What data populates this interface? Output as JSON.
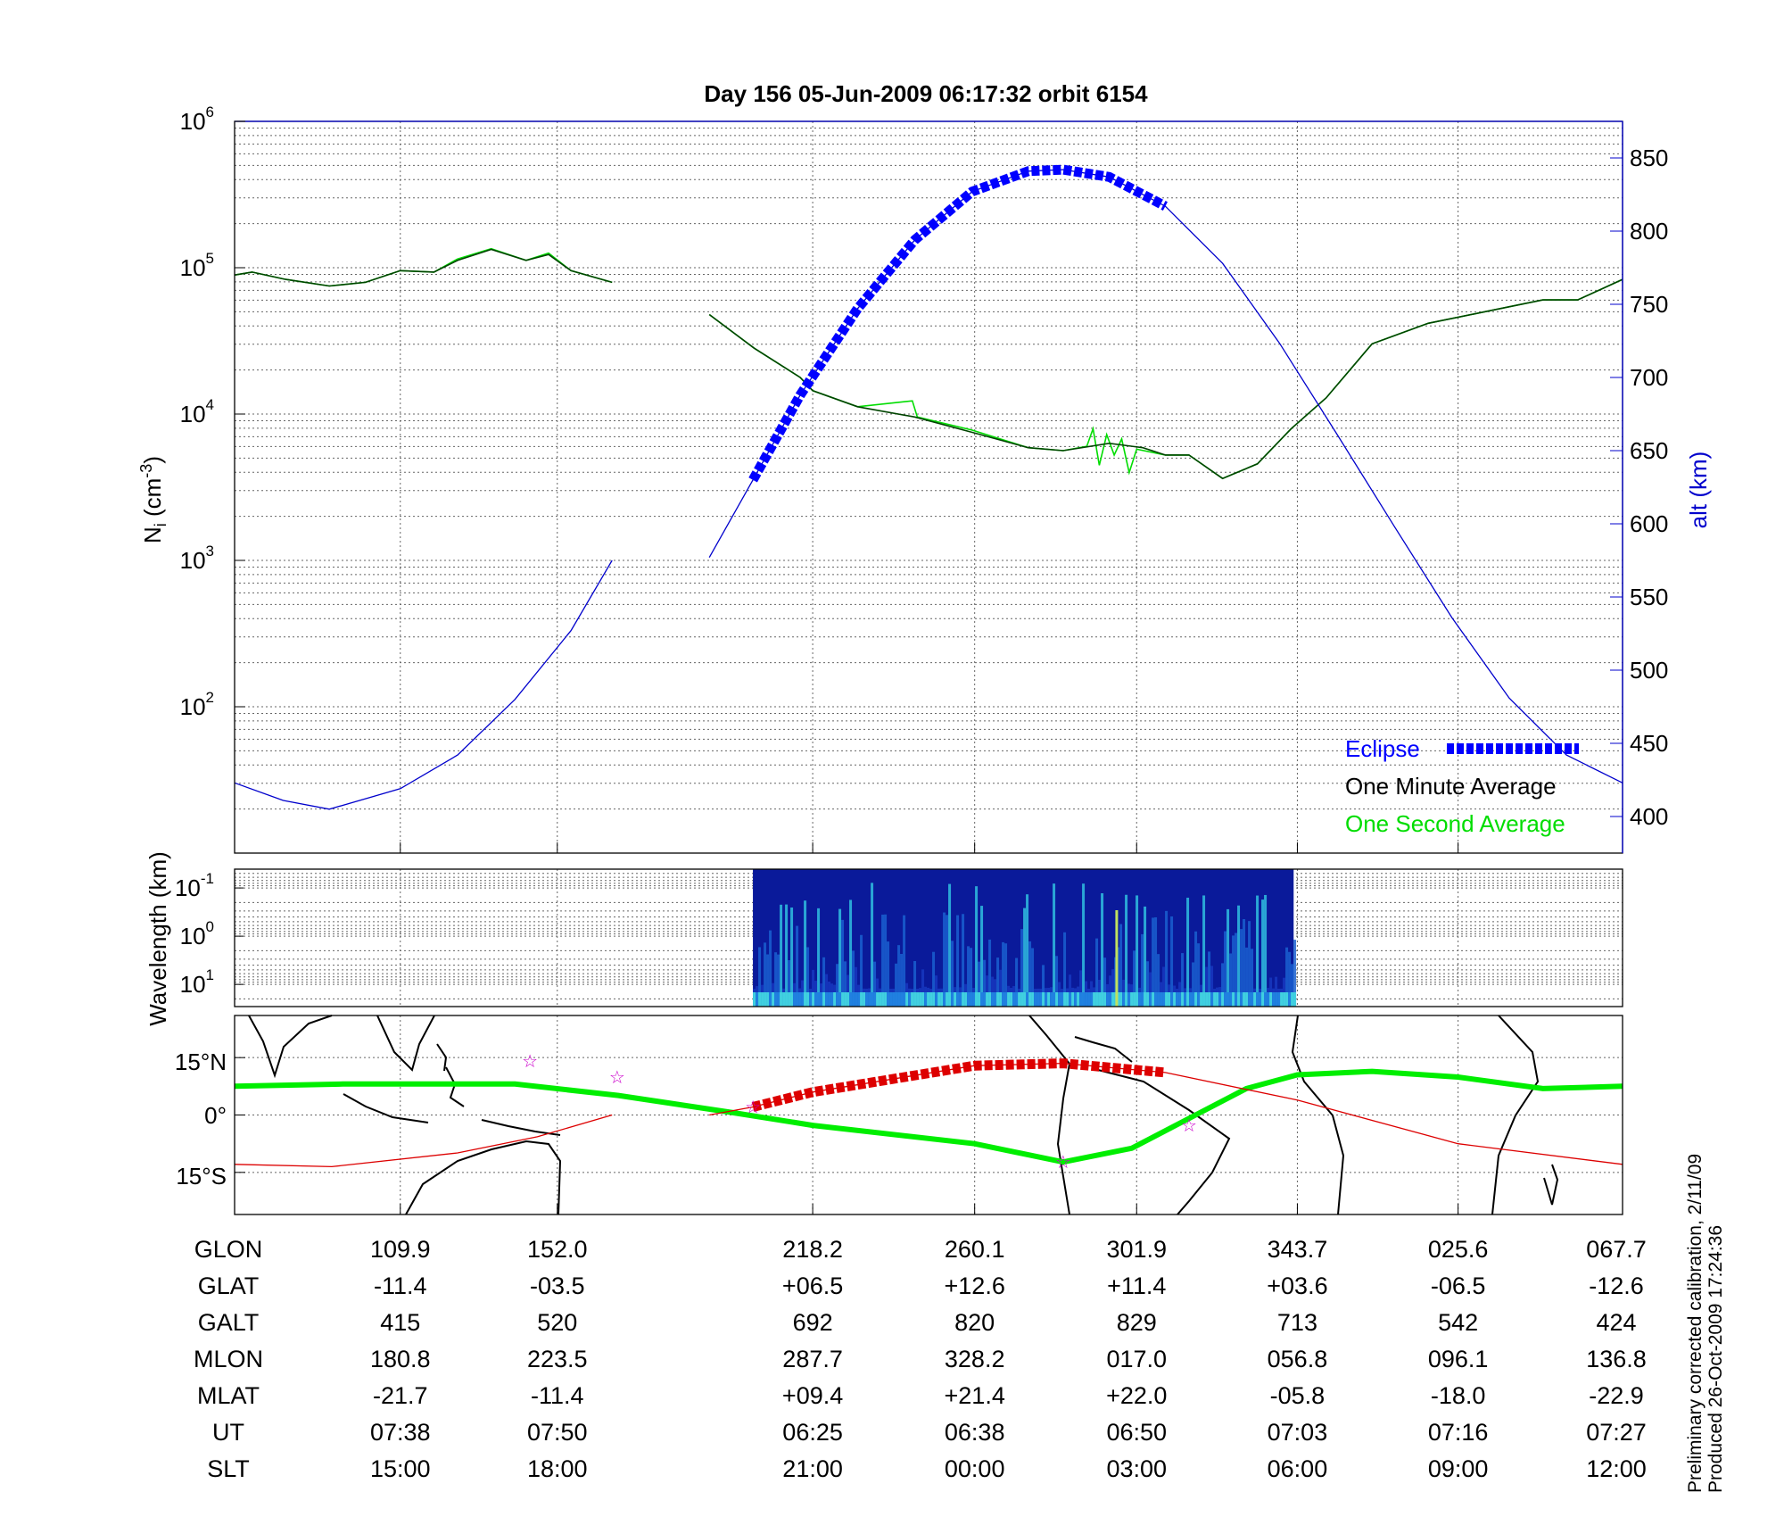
{
  "title": "Day 156  05-Jun-2009 06:17:32   orbit 6154",
  "top_panel": {
    "ylabel_left": "N",
    "ylabel_left_sub": "i",
    "ylabel_left_unit": " (cm",
    "ylabel_left_exp": "-3",
    "ylabel_left_close": ")",
    "ylabel_right": "alt (km)",
    "left_ticks": [
      {
        "base": "10",
        "exp": "6"
      },
      {
        "base": "10",
        "exp": "5"
      },
      {
        "base": "10",
        "exp": "4"
      },
      {
        "base": "10",
        "exp": "3"
      },
      {
        "base": "10",
        "exp": "2"
      }
    ],
    "right_ticks": [
      "850",
      "800",
      "750",
      "700",
      "650",
      "600",
      "550",
      "500",
      "450",
      "400"
    ],
    "legend": {
      "eclipse": "Eclipse",
      "minute": "One Minute Average",
      "second": "One Second Average"
    }
  },
  "spectrogram": {
    "ylabel": "Wavelength (km)",
    "ticks": [
      {
        "base": "10",
        "exp": "-1"
      },
      {
        "base": "10",
        "exp": "0"
      },
      {
        "base": "10",
        "exp": "1"
      }
    ]
  },
  "map": {
    "ticks": [
      "15°N",
      "0°",
      "15°S"
    ]
  },
  "table": {
    "rows": [
      {
        "label": "GLON",
        "values": [
          "109.9",
          "152.0",
          "218.2",
          "260.1",
          "301.9",
          "343.7",
          "025.6",
          "067.7"
        ]
      },
      {
        "label": "GLAT",
        "values": [
          "-11.4",
          "-03.5",
          "+06.5",
          "+12.6",
          "+11.4",
          "+03.6",
          "-06.5",
          "-12.6"
        ]
      },
      {
        "label": "GALT",
        "values": [
          "415",
          "520",
          "692",
          "820",
          "829",
          "713",
          "542",
          "424"
        ]
      },
      {
        "label": "MLON",
        "values": [
          "180.8",
          "223.5",
          "287.7",
          "328.2",
          "017.0",
          "056.8",
          "096.1",
          "136.8"
        ]
      },
      {
        "label": "MLAT",
        "values": [
          "-21.7",
          "-11.4",
          "+09.4",
          "+21.4",
          "+22.0",
          "-05.8",
          "-18.0",
          "-22.9"
        ]
      },
      {
        "label": "UT",
        "values": [
          "07:38",
          "07:50",
          "06:25",
          "06:38",
          "06:50",
          "07:03",
          "07:16",
          "07:27"
        ]
      },
      {
        "label": "SLT",
        "values": [
          "15:00",
          "18:00",
          "21:00",
          "00:00",
          "03:00",
          "06:00",
          "09:00",
          "12:00"
        ]
      }
    ]
  },
  "footer": {
    "line1": "Preliminary corrected calibration, 2/11/09",
    "line2": "Produced 26-Oct-2009 17:24:36"
  },
  "colors": {
    "alt": "#0000cc",
    "eclipse": "#0000ff",
    "minute": "#004400",
    "second": "#00dd00",
    "dip_equator": "#00ee00",
    "track": "#dd0000",
    "star": "#cc00cc"
  },
  "chart_data": {
    "type": "line",
    "title": "Day 156  05-Jun-2009 06:17:32   orbit 6154",
    "xlim_minutes": [
      -46.4,
      65.0
    ],
    "x_ticks_minutes": [
      -33.1,
      -20.5,
      0,
      13.0,
      26.0,
      38.9,
      51.8,
      65.0
    ],
    "ni_log10_range": [
      1,
      6
    ],
    "alt_range_km": [
      375,
      875
    ],
    "lat_range_deg": [
      -26,
      26
    ],
    "wavelength_log10_range": [
      -1.39,
      1.46
    ],
    "eclipse_minutes": [
      -4.8,
      28.3
    ],
    "spectrogram_minutes": [
      -4.8,
      38.6
    ],
    "altitude": [
      [
        -46.4,
        423
      ],
      [
        -42.5,
        411
      ],
      [
        -38.8,
        405
      ],
      [
        -33.1,
        419
      ],
      [
        -28.5,
        442
      ],
      [
        -23.9,
        480
      ],
      [
        -19.4,
        527
      ],
      [
        -16.1,
        575
      ],
      null,
      [
        -8.3,
        577
      ],
      [
        -4.8,
        630
      ],
      [
        -1.0,
        688
      ],
      [
        3.6,
        747
      ],
      [
        8.2,
        794
      ],
      [
        12.8,
        827
      ],
      [
        17.3,
        841
      ],
      [
        20.1,
        842
      ],
      [
        23.8,
        837
      ],
      [
        28.3,
        817
      ],
      [
        32.9,
        778
      ],
      [
        37.5,
        723
      ],
      [
        42.1,
        661
      ],
      [
        46.7,
        598
      ],
      [
        51.3,
        536
      ],
      [
        55.9,
        481
      ],
      [
        60.5,
        442
      ],
      [
        65.0,
        423
      ]
    ],
    "one_minute_log10_ni": [
      [
        -46.4,
        4.95
      ],
      [
        -45.0,
        4.97
      ],
      [
        -42.3,
        4.92
      ],
      [
        -38.8,
        4.875
      ],
      [
        -35.9,
        4.9
      ],
      [
        -33.1,
        4.98
      ],
      [
        -30.4,
        4.97
      ],
      [
        -28.5,
        5.05
      ],
      [
        -25.8,
        5.125
      ],
      [
        -23.0,
        5.05
      ],
      [
        -21.2,
        5.09
      ],
      [
        -19.4,
        4.98
      ],
      [
        -16.1,
        4.9
      ],
      null,
      [
        -8.3,
        4.68
      ],
      [
        -4.7,
        4.45
      ],
      [
        -1.0,
        4.25
      ],
      [
        0,
        4.16
      ],
      [
        3.6,
        4.05
      ],
      [
        8.2,
        3.98
      ],
      [
        12.8,
        3.875
      ],
      [
        17.3,
        3.77
      ],
      [
        20.1,
        3.75
      ],
      [
        23.8,
        3.8
      ],
      [
        26.5,
        3.77
      ],
      [
        28.3,
        3.72
      ],
      [
        30.2,
        3.72
      ],
      [
        32.9,
        3.56
      ],
      [
        35.7,
        3.66
      ],
      [
        38.4,
        3.9
      ],
      [
        41.2,
        4.11
      ],
      [
        44.9,
        4.48
      ],
      [
        49.4,
        4.62
      ],
      [
        54.0,
        4.7
      ],
      [
        58.6,
        4.78
      ],
      [
        61.4,
        4.78
      ],
      [
        65.0,
        4.92
      ]
    ],
    "one_second_log10_ni": [
      [
        -46.4,
        4.95
      ],
      [
        -45.0,
        4.97
      ],
      [
        -42.3,
        4.92
      ],
      [
        -38.8,
        4.875
      ],
      [
        -35.9,
        4.9
      ],
      [
        -33.1,
        4.98
      ],
      [
        -30.4,
        4.97
      ],
      [
        -28.5,
        5.06
      ],
      [
        -25.8,
        5.13
      ],
      [
        -23.0,
        5.05
      ],
      [
        -21.2,
        5.1
      ],
      [
        -19.4,
        4.98
      ],
      [
        -16.1,
        4.9
      ],
      null,
      [
        -8.3,
        4.68
      ],
      [
        -4.7,
        4.45
      ],
      [
        -1.0,
        4.25
      ],
      [
        0,
        4.16
      ],
      [
        3.6,
        4.05
      ],
      [
        8.0,
        4.09
      ],
      [
        8.4,
        3.98
      ],
      [
        12.8,
        3.89
      ],
      [
        17.3,
        3.77
      ],
      [
        20.1,
        3.75
      ],
      [
        22.0,
        3.78
      ],
      [
        22.5,
        3.9
      ],
      [
        23.0,
        3.65
      ],
      [
        23.6,
        3.86
      ],
      [
        24.2,
        3.72
      ],
      [
        24.8,
        3.83
      ],
      [
        25.4,
        3.6
      ],
      [
        26.0,
        3.76
      ],
      [
        28.3,
        3.72
      ],
      [
        30.2,
        3.72
      ],
      [
        32.9,
        3.56
      ],
      [
        35.7,
        3.66
      ],
      [
        38.4,
        3.9
      ],
      [
        41.2,
        4.11
      ],
      [
        44.9,
        4.48
      ],
      [
        49.4,
        4.62
      ],
      [
        54.0,
        4.7
      ],
      [
        58.6,
        4.78
      ],
      [
        61.4,
        4.78
      ],
      [
        65.0,
        4.92
      ]
    ],
    "dip_equator_lat": [
      [
        -46.4,
        7.5
      ],
      [
        -37.7,
        8.1
      ],
      [
        -23.9,
        8.1
      ],
      [
        -15.6,
        5.1
      ],
      [
        -6.4,
        0.6
      ],
      [
        0,
        -2.7
      ],
      [
        13.0,
        -7.5
      ],
      [
        20.1,
        -12.3
      ],
      [
        25.6,
        -8.7
      ],
      [
        30.2,
        -0.9
      ],
      [
        34.8,
        6.9
      ],
      [
        38.9,
        10.5
      ],
      [
        44.9,
        11.4
      ],
      [
        51.8,
        9.9
      ],
      [
        58.6,
        6.9
      ],
      [
        65.0,
        7.5
      ]
    ],
    "ground_track_lat": [
      [
        -46.4,
        -12.9
      ],
      [
        -38.6,
        -13.5
      ],
      [
        -28.5,
        -9.9
      ],
      [
        -22.1,
        -5.7
      ],
      [
        -16.1,
        0
      ],
      null,
      [
        -8.3,
        0
      ],
      [
        -4.8,
        2.1
      ],
      [
        0,
        6.0
      ],
      [
        13.0,
        12.9
      ],
      [
        20.1,
        13.5
      ],
      [
        28.3,
        11.1
      ],
      [
        38.9,
        3.9
      ],
      [
        51.8,
        -7.5
      ],
      [
        65.0,
        -12.9
      ]
    ],
    "stars": [
      [
        -22.7,
        14.1
      ],
      [
        -15.7,
        9.9
      ],
      [
        -4.8,
        2.1
      ],
      [
        20.1,
        -12.3
      ],
      [
        30.2,
        -2.7
      ]
    ]
  }
}
